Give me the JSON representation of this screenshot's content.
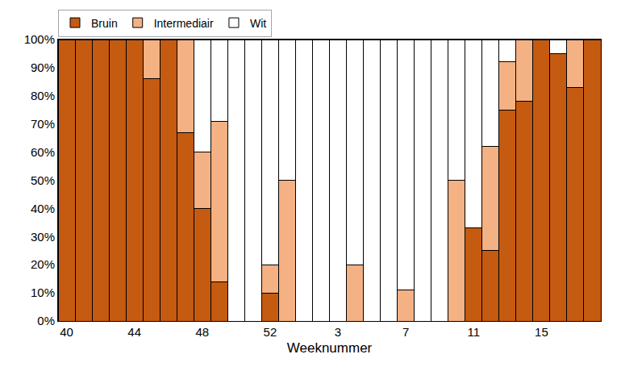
{
  "chart_data": {
    "type": "bar",
    "stacked": true,
    "x_label": "Weeknummer",
    "categories": [
      "40",
      null,
      null,
      null,
      "44",
      null,
      null,
      null,
      "48",
      null,
      null,
      null,
      "52",
      null,
      null,
      null,
      "3",
      null,
      null,
      null,
      "7",
      null,
      null,
      null,
      "11",
      null,
      null,
      null,
      "15",
      null,
      null,
      null
    ],
    "series": [
      {
        "name": "Bruin",
        "color": "#c55a11",
        "values": [
          100,
          100,
          100,
          100,
          100,
          86,
          100,
          67,
          40,
          14,
          0,
          0,
          10,
          0,
          0,
          0,
          0,
          0,
          0,
          0,
          0,
          0,
          0,
          0,
          33,
          25,
          75,
          78,
          100,
          95,
          83,
          100
        ]
      },
      {
        "name": "Intermediair",
        "color": "#f4b183",
        "values": [
          0,
          0,
          0,
          0,
          0,
          14,
          0,
          33,
          20,
          57,
          0,
          0,
          10,
          50,
          0,
          0,
          0,
          20,
          0,
          0,
          11,
          0,
          0,
          50,
          0,
          37,
          17,
          22,
          0,
          0,
          17,
          0
        ]
      },
      {
        "name": "Wit",
        "color": "#ffffff",
        "values": [
          0,
          0,
          0,
          0,
          0,
          0,
          0,
          0,
          40,
          29,
          100,
          100,
          80,
          50,
          100,
          100,
          100,
          80,
          100,
          100,
          89,
          100,
          100,
          50,
          67,
          38,
          8,
          0,
          0,
          5,
          0,
          0
        ]
      }
    ],
    "ylim": [
      0,
      100
    ],
    "yticks": [
      {
        "value": 0,
        "label": "0%"
      },
      {
        "value": 10,
        "label": "10%"
      },
      {
        "value": 20,
        "label": "20%"
      },
      {
        "value": 30,
        "label": "30%"
      },
      {
        "value": 40,
        "label": "40%"
      },
      {
        "value": 50,
        "label": "50%"
      },
      {
        "value": 60,
        "label": "60%"
      },
      {
        "value": 70,
        "label": "70%"
      },
      {
        "value": 80,
        "label": "80%"
      },
      {
        "value": 90,
        "label": "90%"
      },
      {
        "value": 100,
        "label": "100%"
      }
    ],
    "grid": false,
    "legend": "upper left"
  }
}
